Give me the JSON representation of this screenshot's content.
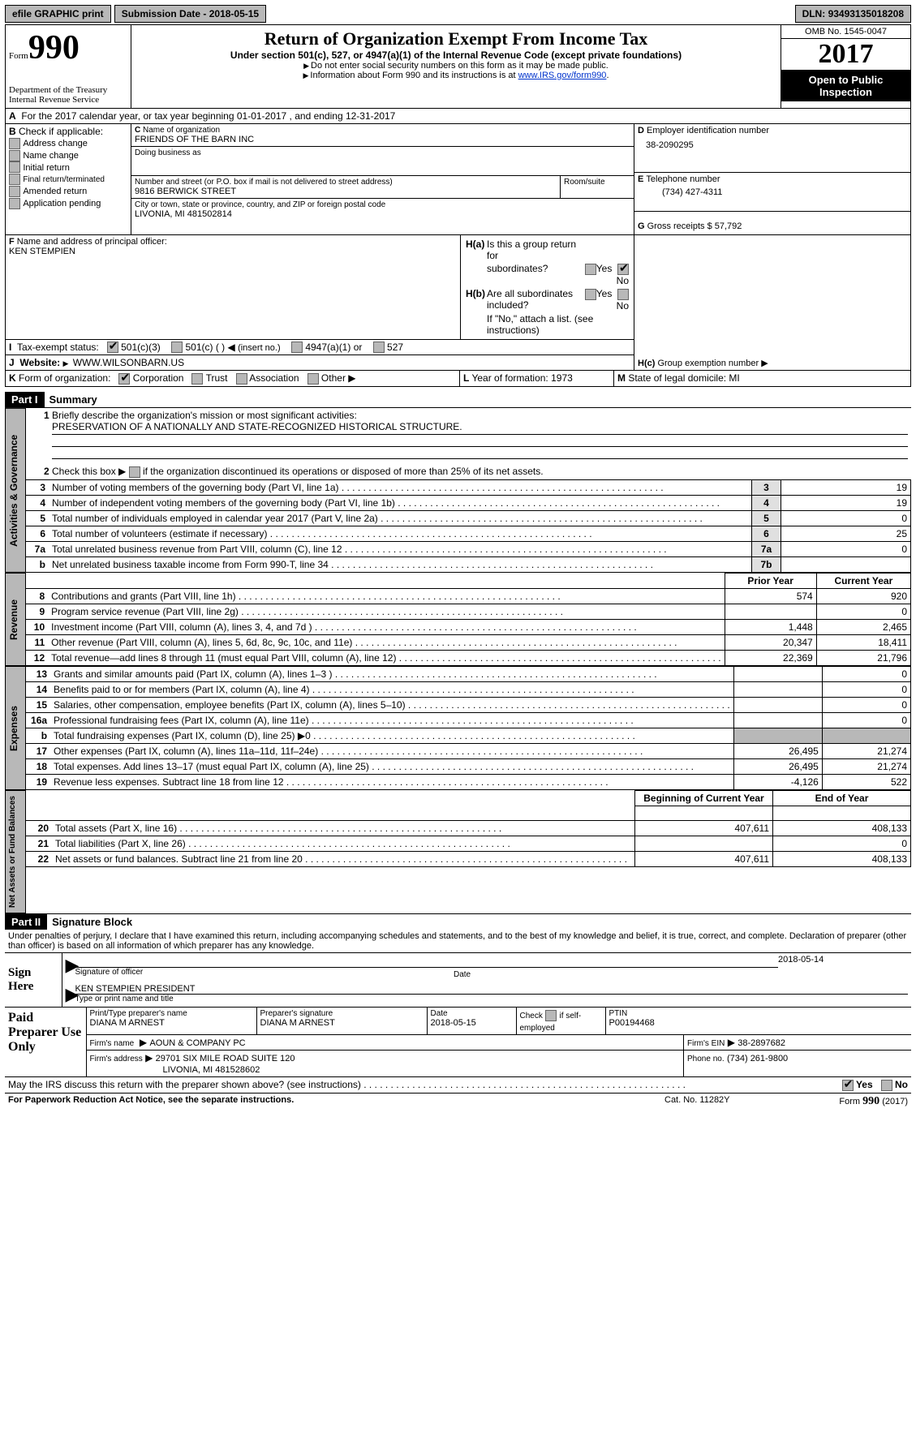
{
  "topbar": {
    "efile": "efile GRAPHIC print",
    "subdate_label": "Submission Date - ",
    "subdate": "2018-05-15",
    "dln_label": "DLN: ",
    "dln": "93493135018208"
  },
  "header": {
    "form_word": "Form",
    "form_num": "990",
    "dept1": "Department of the Treasury",
    "dept2": "Internal Revenue Service",
    "title": "Return of Organization Exempt From Income Tax",
    "subtitle": "Under section 501(c), 527, or 4947(a)(1) of the Internal Revenue Code (except private foundations)",
    "note1": "Do not enter social security numbers on this form as it may be made public.",
    "note2_pre": "Information about Form 990 and its instructions is at ",
    "note2_link": "www.IRS.gov/form990",
    "omb_label": "OMB No. 1545-0047",
    "year": "2017",
    "open": "Open to Public Inspection"
  },
  "A": {
    "line": "For the 2017 calendar year, or tax year beginning 01-01-2017   , and ending 12-31-2017"
  },
  "B": {
    "label": "Check if applicable:",
    "items": [
      "Address change",
      "Name change",
      "Initial return",
      "Final return/terminated",
      "Amended return",
      "Application pending"
    ]
  },
  "C": {
    "org_label": "Name of organization",
    "org": "FRIENDS OF THE BARN INC",
    "dba_label": "Doing business as",
    "dba": "",
    "street_label": "Number and street (or P.O. box if mail is not delivered to street address)",
    "room_label": "Room/suite",
    "street": "9816 BERWICK STREET",
    "city_label": "City or town, state or province, country, and ZIP or foreign postal code",
    "city": "LIVONIA, MI  481502814"
  },
  "D": {
    "label": "Employer identification number",
    "val": "38-2090295"
  },
  "E": {
    "label": "Telephone number",
    "val": "(734) 427-4311"
  },
  "F": {
    "label": "Name and address of principal officer:",
    "val": "KEN STEMPIEN"
  },
  "G": {
    "label": "Gross receipts $ ",
    "val": "57,792"
  },
  "H": {
    "a": "Is this a group return for",
    "a2": "subordinates?",
    "yes": "Yes",
    "no": "No",
    "b": "Are all subordinates included?",
    "note": "If \"No,\" attach a list. (see instructions)",
    "c": "Group exemption number"
  },
  "I": {
    "label": "Tax-exempt status:",
    "o1": "501(c)(3)",
    "o2": "501(c) (  )",
    "ins": "(insert no.)",
    "o3": "4947(a)(1) or",
    "o4": "527"
  },
  "J": {
    "label": "Website:",
    "val": "WWW.WILSONBARN.US"
  },
  "K": {
    "label": "Form of organization:",
    "o1": "Corporation",
    "o2": "Trust",
    "o3": "Association",
    "o4": "Other"
  },
  "L": {
    "label": "Year of formation: ",
    "val": "1973"
  },
  "M": {
    "label": "State of legal domicile: ",
    "val": "MI"
  },
  "part1": {
    "label": "Part I",
    "title": "Summary"
  },
  "summary": {
    "q1": "Briefly describe the organization's mission or most significant activities:",
    "mission": "PRESERVATION OF A NATIONALLY AND STATE-RECOGNIZED HISTORICAL STRUCTURE.",
    "q2": "Check this box",
    "q2b": "if the organization discontinued its operations or disposed of more than 25% of its net assets.",
    "rows": [
      {
        "n": "3",
        "t": "Number of voting members of the governing body (Part VI, line 1a)",
        "rn": "3",
        "v": "19"
      },
      {
        "n": "4",
        "t": "Number of independent voting members of the governing body (Part VI, line 1b)",
        "rn": "4",
        "v": "19"
      },
      {
        "n": "5",
        "t": "Total number of individuals employed in calendar year 2017 (Part V, line 2a)",
        "rn": "5",
        "v": "0"
      },
      {
        "n": "6",
        "t": "Total number of volunteers (estimate if necessary)",
        "rn": "6",
        "v": "25"
      },
      {
        "n": "7a",
        "t": "Total unrelated business revenue from Part VIII, column (C), line 12",
        "rn": "7a",
        "v": "0"
      },
      {
        "n": "b",
        "t": "Net unrelated business taxable income from Form 990-T, line 34",
        "rn": "7b",
        "v": ""
      }
    ]
  },
  "fin": {
    "hdr_prior": "Prior Year",
    "hdr_curr": "Current Year",
    "rev": [
      {
        "n": "8",
        "t": "Contributions and grants (Part VIII, line 1h)",
        "p": "574",
        "c": "920"
      },
      {
        "n": "9",
        "t": "Program service revenue (Part VIII, line 2g)",
        "p": "",
        "c": "0"
      },
      {
        "n": "10",
        "t": "Investment income (Part VIII, column (A), lines 3, 4, and 7d )",
        "p": "1,448",
        "c": "2,465"
      },
      {
        "n": "11",
        "t": "Other revenue (Part VIII, column (A), lines 5, 6d, 8c, 9c, 10c, and 11e)",
        "p": "20,347",
        "c": "18,411"
      },
      {
        "n": "12",
        "t": "Total revenue—add lines 8 through 11 (must equal Part VIII, column (A), line 12)",
        "p": "22,369",
        "c": "21,796"
      }
    ],
    "exp": [
      {
        "n": "13",
        "t": "Grants and similar amounts paid (Part IX, column (A), lines 1–3 )",
        "p": "",
        "c": "0"
      },
      {
        "n": "14",
        "t": "Benefits paid to or for members (Part IX, column (A), line 4)",
        "p": "",
        "c": "0"
      },
      {
        "n": "15",
        "t": "Salaries, other compensation, employee benefits (Part IX, column (A), lines 5–10)",
        "p": "",
        "c": "0"
      },
      {
        "n": "16a",
        "t": "Professional fundraising fees (Part IX, column (A), line 11e)",
        "p": "",
        "c": "0"
      },
      {
        "n": "b",
        "t": "Total fundraising expenses (Part IX, column (D), line 25) ▶0",
        "p": "SHADE",
        "c": "SHADE"
      },
      {
        "n": "17",
        "t": "Other expenses (Part IX, column (A), lines 11a–11d, 11f–24e)",
        "p": "26,495",
        "c": "21,274"
      },
      {
        "n": "18",
        "t": "Total expenses. Add lines 13–17 (must equal Part IX, column (A), line 25)",
        "p": "26,495",
        "c": "21,274"
      },
      {
        "n": "19",
        "t": "Revenue less expenses. Subtract line 18 from line 12",
        "p": "-4,126",
        "c": "522"
      }
    ],
    "hdr_beg": "Beginning of Current Year",
    "hdr_end": "End of Year",
    "net": [
      {
        "n": "20",
        "t": "Total assets (Part X, line 16)",
        "p": "407,611",
        "c": "408,133"
      },
      {
        "n": "21",
        "t": "Total liabilities (Part X, line 26)",
        "p": "",
        "c": "0"
      },
      {
        "n": "22",
        "t": "Net assets or fund balances. Subtract line 21 from line 20",
        "p": "407,611",
        "c": "408,133"
      }
    ]
  },
  "tabs": {
    "ag": "Activities & Governance",
    "rev": "Revenue",
    "exp": "Expenses",
    "net": "Net Assets or Fund Balances"
  },
  "part2": {
    "label": "Part II",
    "title": "Signature Block",
    "decl": "Under penalties of perjury, I declare that I have examined this return, including accompanying schedules and statements, and to the best of my knowledge and belief, it is true, correct, and complete. Declaration of preparer (other than officer) is based on all information of which preparer has any knowledge."
  },
  "sign": {
    "here": "Sign Here",
    "sig_label": "Signature of officer",
    "date_label": "Date",
    "date": "2018-05-14",
    "name": "KEN STEMPIEN PRESIDENT",
    "name_label": "Type or print name and title"
  },
  "paid": {
    "title": "Paid Preparer Use Only",
    "pname_l": "Print/Type preparer's name",
    "pname": "DIANA M ARNEST",
    "psig_l": "Preparer's signature",
    "psig": "DIANA M ARNEST",
    "pdate_l": "Date",
    "pdate": "2018-05-15",
    "self_l": "Check",
    "self_l2": "if self-employed",
    "ptin_l": "PTIN",
    "ptin": "P00194468",
    "firm_l": "Firm's name",
    "firm": "AOUN & COMPANY PC",
    "fein_l": "Firm's EIN",
    "fein": "38-2897682",
    "faddr_l": "Firm's address",
    "faddr": "29701 SIX MILE ROAD SUITE 120",
    "fcity": "LIVONIA, MI  481528602",
    "fphone_l": "Phone no.",
    "fphone": "(734) 261-9800"
  },
  "footer": {
    "irs_q": "May the IRS discuss this return with the preparer shown above? (see instructions)",
    "yes": "Yes",
    "no": "No",
    "pra": "For Paperwork Reduction Act Notice, see the separate instructions.",
    "cat": "Cat. No. 11282Y",
    "form": "Form",
    "formnum": "990",
    "formyr": "(2017)"
  }
}
